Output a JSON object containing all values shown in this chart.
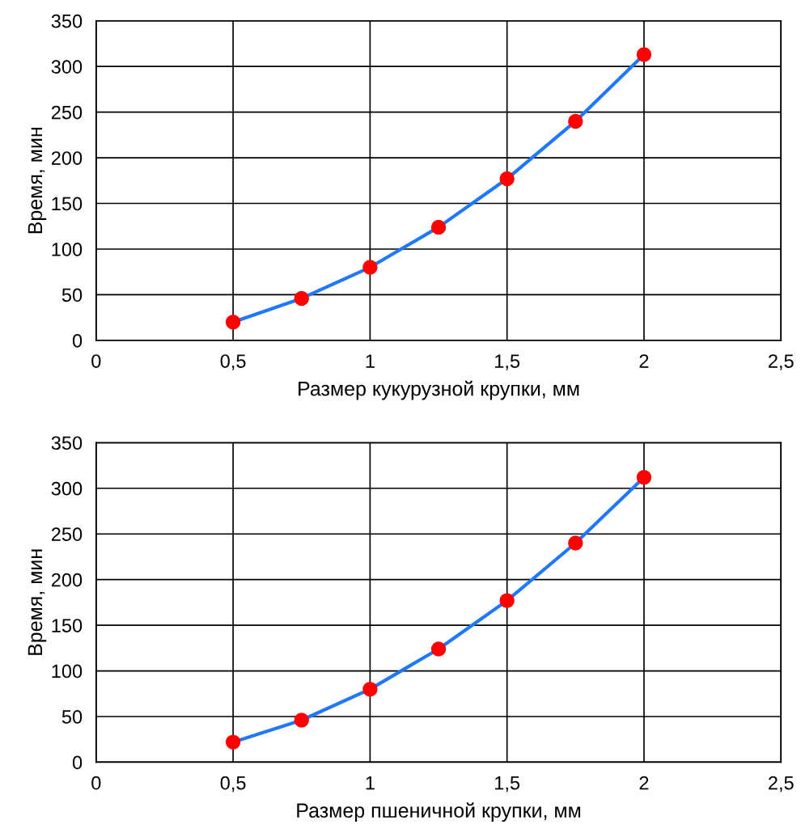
{
  "chart_data": [
    {
      "type": "line",
      "xlabel": "Размер кукурузной крупки, мм",
      "ylabel": "Время, мин",
      "x": [
        0.5,
        0.75,
        1,
        1.25,
        1.5,
        1.75,
        2
      ],
      "series": [
        {
          "color": "#1f78ff",
          "colors": [
            "#ff0000",
            "#ff0000",
            "#ff0000",
            "#ff0000",
            "#ff0000",
            "#ff0000",
            "#ff0000"
          ],
          "values": [
            20,
            46,
            80,
            124,
            177,
            240,
            313
          ]
        }
      ],
      "xlim": [
        0,
        2.5
      ],
      "xticks": [
        0,
        {
          "value": 0.5,
          "label": "0,5"
        },
        1,
        {
          "value": 1.5,
          "label": "1,5"
        },
        2,
        {
          "value": 2.5,
          "label": "2,5"
        }
      ],
      "ylim": [
        0,
        350
      ],
      "yticks": [
        0,
        50,
        100,
        150,
        200,
        250,
        300,
        350
      ],
      "grid": true,
      "marker": "circle",
      "line_style": "solid"
    },
    {
      "type": "line",
      "xlabel": "Размер пшеничной крупки, мм",
      "ylabel": "Время, мин",
      "x": [
        0.5,
        0.75,
        1,
        1.25,
        1.5,
        1.75,
        2
      ],
      "series": [
        {
          "color": "#1f78ff",
          "colors": [
            "#ff0000",
            "#ff0000",
            "#ff0000",
            "#ff0000",
            "#ff0000",
            "#ff0000",
            "#ff0000"
          ],
          "values": [
            22,
            46,
            80,
            124,
            177,
            240,
            312
          ]
        }
      ],
      "xlim": [
        0,
        2.5
      ],
      "xticks": [
        0,
        {
          "value": 0.5,
          "label": "0,5"
        },
        1,
        {
          "value": 1.5,
          "label": "1,5"
        },
        2,
        {
          "value": 2.5,
          "label": "2,5"
        }
      ],
      "ylim": [
        0,
        350
      ],
      "yticks": [
        0,
        50,
        100,
        150,
        200,
        250,
        300,
        350
      ],
      "grid": true,
      "marker": "circle",
      "line_style": "solid"
    }
  ]
}
